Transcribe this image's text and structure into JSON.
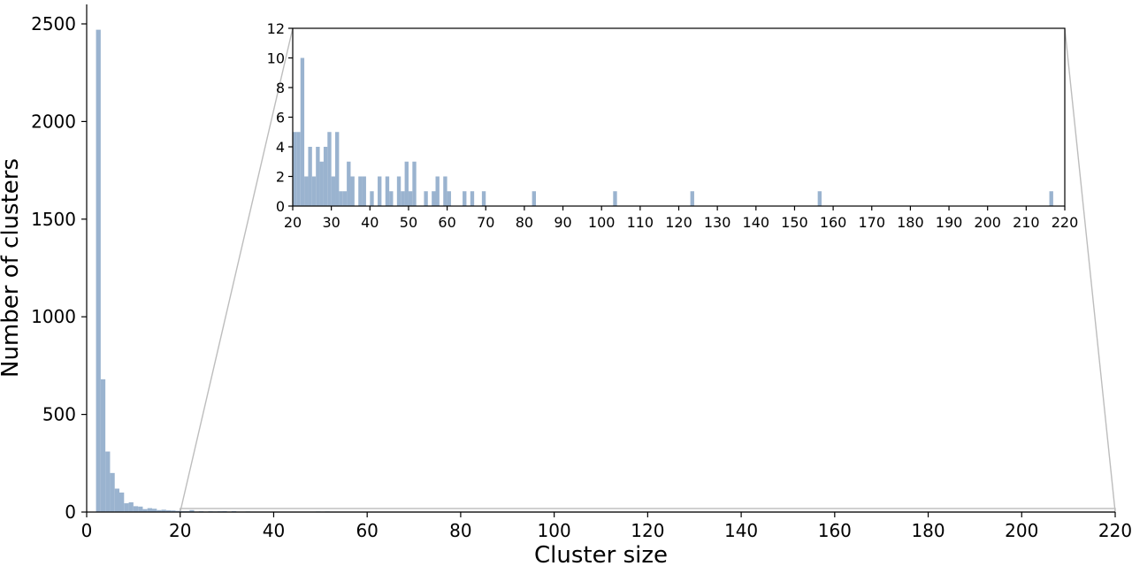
{
  "colors": {
    "bar": "#9ab3cf",
    "axis": "#000000",
    "connector": "#bdbdbd"
  },
  "chart_data": [
    {
      "id": "main",
      "type": "bar",
      "title": "",
      "xlabel": "Cluster size",
      "ylabel": "Number of clusters",
      "xlim": [
        0,
        220
      ],
      "ylim": [
        0,
        2500
      ],
      "x_ticks": [
        0,
        20,
        40,
        60,
        80,
        100,
        120,
        140,
        160,
        180,
        200,
        220
      ],
      "y_ticks": [
        0,
        500,
        1000,
        1500,
        2000,
        2500
      ],
      "bin_width": 1,
      "bars": [
        {
          "x": 2,
          "y": 2470
        },
        {
          "x": 3,
          "y": 680
        },
        {
          "x": 4,
          "y": 310
        },
        {
          "x": 5,
          "y": 200
        },
        {
          "x": 6,
          "y": 120
        },
        {
          "x": 7,
          "y": 100
        },
        {
          "x": 8,
          "y": 45
        },
        {
          "x": 9,
          "y": 50
        },
        {
          "x": 10,
          "y": 30
        },
        {
          "x": 11,
          "y": 28
        },
        {
          "x": 12,
          "y": 15
        },
        {
          "x": 13,
          "y": 20
        },
        {
          "x": 14,
          "y": 17
        },
        {
          "x": 15,
          "y": 10
        },
        {
          "x": 16,
          "y": 12
        },
        {
          "x": 17,
          "y": 9
        },
        {
          "x": 18,
          "y": 8
        },
        {
          "x": 19,
          "y": 6
        },
        {
          "x": 20,
          "y": 5
        },
        {
          "x": 21,
          "y": 5
        },
        {
          "x": 22,
          "y": 10
        },
        {
          "x": 23,
          "y": 2
        },
        {
          "x": 24,
          "y": 4
        },
        {
          "x": 25,
          "y": 2
        },
        {
          "x": 26,
          "y": 4
        },
        {
          "x": 27,
          "y": 3
        },
        {
          "x": 28,
          "y": 4
        },
        {
          "x": 29,
          "y": 5
        },
        {
          "x": 30,
          "y": 2
        },
        {
          "x": 31,
          "y": 5
        },
        {
          "x": 32,
          "y": 1
        },
        {
          "x": 33,
          "y": 1
        },
        {
          "x": 34,
          "y": 3
        },
        {
          "x": 35,
          "y": 2
        },
        {
          "x": 37,
          "y": 2
        },
        {
          "x": 38,
          "y": 2
        },
        {
          "x": 40,
          "y": 1
        },
        {
          "x": 42,
          "y": 2
        },
        {
          "x": 44,
          "y": 2
        },
        {
          "x": 45,
          "y": 1
        },
        {
          "x": 47,
          "y": 2
        },
        {
          "x": 48,
          "y": 1
        },
        {
          "x": 49,
          "y": 3
        },
        {
          "x": 50,
          "y": 1
        },
        {
          "x": 51,
          "y": 3
        },
        {
          "x": 54,
          "y": 1
        },
        {
          "x": 56,
          "y": 1
        },
        {
          "x": 57,
          "y": 2
        },
        {
          "x": 59,
          "y": 2
        },
        {
          "x": 60,
          "y": 1
        }
      ]
    },
    {
      "id": "inset",
      "type": "bar",
      "title": "",
      "xlabel": "",
      "ylabel": "",
      "xlim": [
        20,
        220
      ],
      "ylim": [
        0,
        12
      ],
      "x_ticks": [
        20,
        30,
        40,
        50,
        60,
        70,
        80,
        90,
        100,
        110,
        120,
        130,
        140,
        150,
        160,
        170,
        180,
        190,
        200,
        210,
        220
      ],
      "y_ticks": [
        0,
        2,
        4,
        6,
        8,
        10,
        12
      ],
      "bin_width": 1,
      "bars": [
        {
          "x": 20,
          "y": 5
        },
        {
          "x": 21,
          "y": 5
        },
        {
          "x": 22,
          "y": 10
        },
        {
          "x": 23,
          "y": 2
        },
        {
          "x": 24,
          "y": 4
        },
        {
          "x": 25,
          "y": 2
        },
        {
          "x": 26,
          "y": 4
        },
        {
          "x": 27,
          "y": 3
        },
        {
          "x": 28,
          "y": 4
        },
        {
          "x": 29,
          "y": 5
        },
        {
          "x": 30,
          "y": 2
        },
        {
          "x": 31,
          "y": 5
        },
        {
          "x": 32,
          "y": 1
        },
        {
          "x": 33,
          "y": 1
        },
        {
          "x": 34,
          "y": 3
        },
        {
          "x": 35,
          "y": 2
        },
        {
          "x": 37,
          "y": 2
        },
        {
          "x": 38,
          "y": 2
        },
        {
          "x": 40,
          "y": 1
        },
        {
          "x": 42,
          "y": 2
        },
        {
          "x": 44,
          "y": 2
        },
        {
          "x": 45,
          "y": 1
        },
        {
          "x": 47,
          "y": 2
        },
        {
          "x": 48,
          "y": 1
        },
        {
          "x": 49,
          "y": 3
        },
        {
          "x": 50,
          "y": 1
        },
        {
          "x": 51,
          "y": 3
        },
        {
          "x": 54,
          "y": 1
        },
        {
          "x": 56,
          "y": 1
        },
        {
          "x": 57,
          "y": 2
        },
        {
          "x": 59,
          "y": 2
        },
        {
          "x": 60,
          "y": 1
        },
        {
          "x": 64,
          "y": 1
        },
        {
          "x": 66,
          "y": 1
        },
        {
          "x": 69,
          "y": 1
        },
        {
          "x": 82,
          "y": 1
        },
        {
          "x": 103,
          "y": 1
        },
        {
          "x": 123,
          "y": 1
        },
        {
          "x": 156,
          "y": 1
        },
        {
          "x": 216,
          "y": 1
        }
      ]
    }
  ]
}
